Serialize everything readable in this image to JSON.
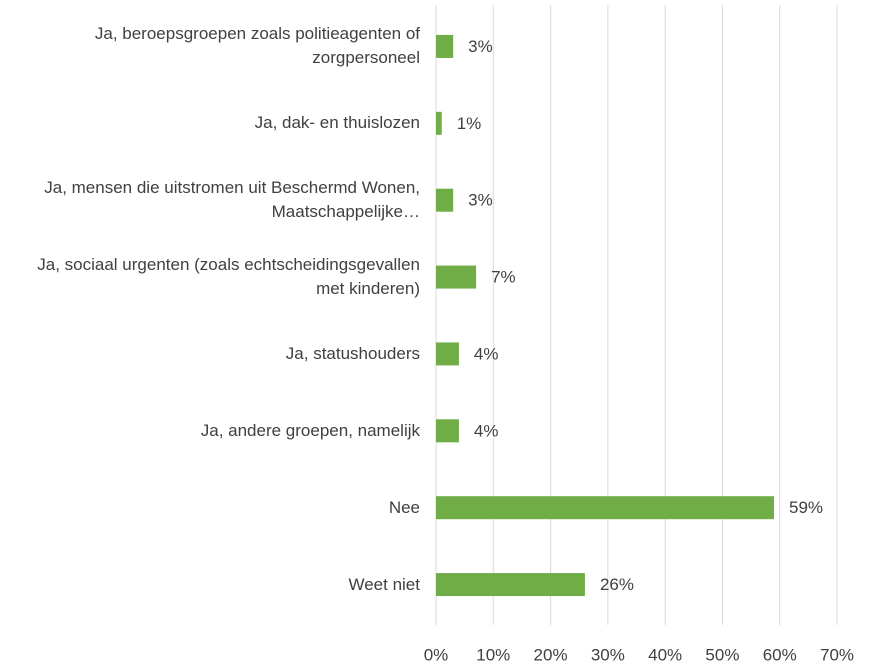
{
  "chart_data": {
    "type": "bar",
    "orientation": "horizontal",
    "categories": [
      "Ja, beroepsgroepen zoals politieagenten of zorgpersoneel",
      "Ja, dak- en thuislozen",
      "Ja, mensen die uitstromen uit Beschermd Wonen, Maatschappelijke…",
      "Ja, sociaal urgenten (zoals echtscheidingsgevallen met kinderen)",
      "Ja, statushouders",
      "Ja, andere groepen, namelijk",
      "Nee",
      "Weet niet"
    ],
    "values": [
      3,
      1,
      3,
      7,
      4,
      4,
      59,
      26
    ],
    "value_labels": [
      "3%",
      "1%",
      "3%",
      "7%",
      "4%",
      "4%",
      "59%",
      "26%"
    ],
    "color": "#70ad47",
    "xlim": [
      0,
      70
    ],
    "xticks": [
      {
        "value": 0,
        "label": "0%"
      },
      {
        "value": 10,
        "label": "10%"
      },
      {
        "value": 20,
        "label": "20%"
      },
      {
        "value": 30,
        "label": "30%"
      },
      {
        "value": 40,
        "label": "40%"
      },
      {
        "value": 50,
        "label": "50%"
      },
      {
        "value": 60,
        "label": "60%"
      },
      {
        "value": 70,
        "label": "70%"
      }
    ],
    "grid": true
  }
}
